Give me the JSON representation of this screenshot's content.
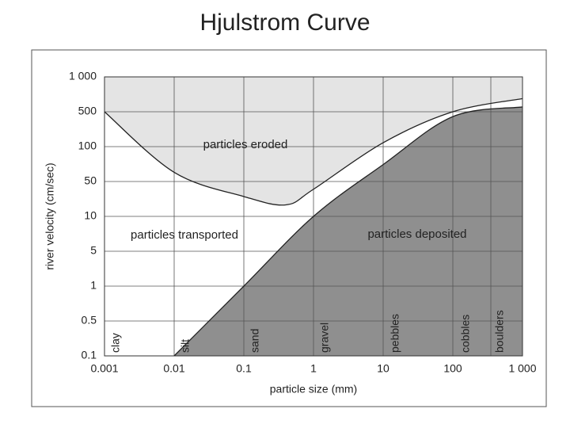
{
  "chart_data": {
    "type": "area",
    "title": "Hjulstrom Curve",
    "x_label": "particle size (mm)",
    "y_label": "river velocity  (cm/sec)",
    "x_scale": "log",
    "y_scale": "log",
    "xlim": [
      0.001,
      1000
    ],
    "ylim": [
      0.1,
      1000
    ],
    "xticks": [
      0.001,
      0.01,
      0.1,
      1,
      10,
      100,
      {
        "value": 1000,
        "label": "1 000"
      }
    ],
    "yticks": [
      0.1,
      0.5,
      1,
      5,
      10,
      50,
      100,
      500,
      {
        "value": 1000,
        "label": "1 000"
      }
    ],
    "grid": true,
    "series": [
      {
        "color": "#222222",
        "fill": "#e4e4e4",
        "x": [
          0.001,
          0.01,
          0.1,
          0.4,
          1,
          10,
          100,
          1000
        ],
        "values": [
          500,
          60,
          25,
          17,
          35,
          120,
          500,
          650
        ]
      },
      {
        "color": "#222222",
        "fill": "#8f8f8f",
        "x": [
          0.01,
          0.1,
          1,
          10,
          100,
          1000
        ],
        "values": [
          0.1,
          1,
          10,
          70,
          400,
          550
        ]
      }
    ],
    "regions": [
      "particles eroded",
      "particles transported",
      "particles deposited"
    ],
    "size_classes": [
      "clay",
      "silt",
      "sand",
      "gravel",
      "pebbles",
      "cobbles",
      "boulders"
    ]
  }
}
